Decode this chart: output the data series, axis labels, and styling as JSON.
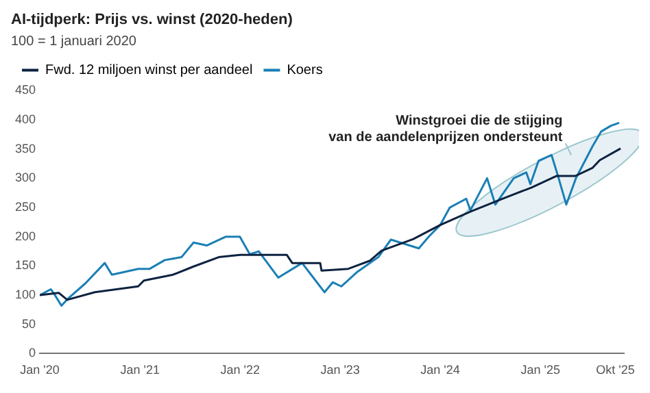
{
  "chart_data": {
    "type": "line",
    "title": "AI-tijdperk: Prijs vs. winst (2020-heden)",
    "subtitle": "100 = 1 januari 2020",
    "legend": "top left",
    "grid": false,
    "marker": "none",
    "line_style": "solid",
    "xlim": [
      "2020-01",
      "2025-11"
    ],
    "ylim": [
      0,
      450
    ],
    "xticks": [
      {
        "value": "2020-01",
        "label": "Jan '20"
      },
      {
        "value": "2021-01",
        "label": "Jan '21"
      },
      {
        "value": "2022-01",
        "label": "Jan '22"
      },
      {
        "value": "2023-01",
        "label": "Jan '23"
      },
      {
        "value": "2024-01",
        "label": "Jan '24"
      },
      {
        "value": "2025-01",
        "label": "Jan '25"
      },
      {
        "value": "2025-10",
        "label": "Okt '25"
      }
    ],
    "yticks": [
      0,
      50,
      100,
      150,
      200,
      250,
      300,
      350,
      400,
      450
    ],
    "annotations": [
      "Winstgroei die de stijging\nvan de aandelenprijzen ondersteunt"
    ],
    "series": [
      {
        "name": "Fwd. 12 miljoen winst per aandeel",
        "color": "#0d2240",
        "x": [
          "2020-01-01",
          "2020-03-10",
          "2020-04-10",
          "2020-07-20",
          "2020-12-25",
          "2021-01-15",
          "2021-05-01",
          "2021-07-15",
          "2021-10-15",
          "2022-01-01",
          "2022-06-20",
          "2022-07-10",
          "2022-10-20",
          "2022-10-25",
          "2023-01-30",
          "2023-04-20",
          "2023-06-01",
          "2023-09-25",
          "2024-01-01",
          "2024-04-20",
          "2024-08-10",
          "2024-11-28",
          "2025-03-01",
          "2025-05-08",
          "2025-07-10",
          "2025-08-05",
          "2025-10-20"
        ],
        "values": [
          100,
          104,
          92,
          105,
          115,
          125,
          135,
          149,
          165,
          169,
          169,
          155,
          155,
          142,
          145,
          159,
          176,
          196,
          220,
          243,
          264,
          284,
          304,
          304,
          318,
          331,
          351
        ]
      },
      {
        "name": "Koers",
        "color": "#1a7fb5",
        "x": [
          "2020-01-01",
          "2020-02-10",
          "2020-02-20",
          "2020-03-20",
          "2020-04-15",
          "2020-06-15",
          "2020-08-25",
          "2020-09-20",
          "2020-12-25",
          "2021-02-05",
          "2021-04-01",
          "2021-06-01",
          "2021-07-15",
          "2021-09-01",
          "2021-11-10",
          "2021-12-31",
          "2022-02-05",
          "2022-03-10",
          "2022-05-20",
          "2022-08-15",
          "2022-09-25",
          "2022-11-05",
          "2022-12-05",
          "2023-01-05",
          "2023-03-05",
          "2023-05-20",
          "2023-07-05",
          "2023-10-15",
          "2023-11-20",
          "2024-01-01",
          "2024-02-05",
          "2024-04-05",
          "2024-04-20",
          "2024-06-20",
          "2024-07-20",
          "2024-09-25",
          "2024-11-10",
          "2024-11-25",
          "2024-12-25",
          "2025-02-10",
          "2025-03-05",
          "2025-04-05",
          "2025-05-10",
          "2025-07-10",
          "2025-08-10",
          "2025-09-15",
          "2025-10-15"
        ],
        "values": [
          100,
          110,
          104,
          82,
          95,
          120,
          155,
          135,
          145,
          145,
          160,
          165,
          190,
          185,
          200,
          200,
          170,
          175,
          130,
          155,
          130,
          105,
          122,
          115,
          140,
          165,
          195,
          180,
          200,
          220,
          250,
          265,
          245,
          300,
          255,
          300,
          310,
          290,
          330,
          340,
          305,
          255,
          300,
          355,
          380,
          390,
          395
        ]
      }
    ]
  }
}
